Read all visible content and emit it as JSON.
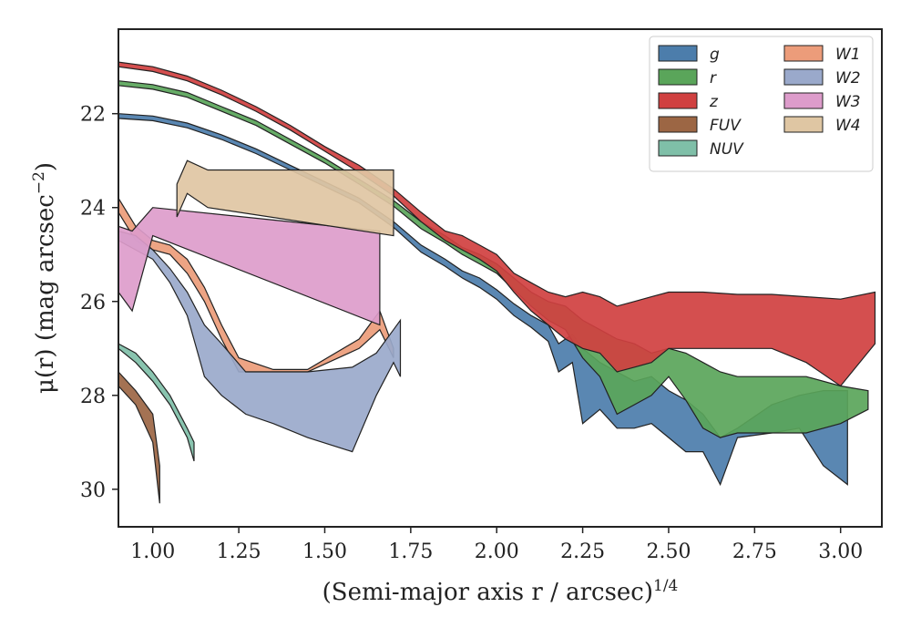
{
  "chart_data": {
    "type": "area",
    "xlabel": "(Semi-major axis r / arcsec)",
    "xlabel_exponent": "1/4",
    "ylabel": "μ(r) (mag arcsec",
    "ylabel_exponent": "−2",
    "ylabel_close": ")",
    "xlim": [
      0.9,
      3.12
    ],
    "ylim": [
      30.8,
      20.2
    ],
    "y_inverted": true,
    "grid": false,
    "legend_position": "top-right",
    "x_ticks": [
      {
        "value": 1.0,
        "label": "1.00"
      },
      {
        "value": 1.25,
        "label": "1.25"
      },
      {
        "value": 1.5,
        "label": "1.50"
      },
      {
        "value": 1.75,
        "label": "1.75"
      },
      {
        "value": 2.0,
        "label": "2.00"
      },
      {
        "value": 2.25,
        "label": "2.25"
      },
      {
        "value": 2.5,
        "label": "2.50"
      },
      {
        "value": 2.75,
        "label": "2.75"
      },
      {
        "value": 3.0,
        "label": "3.00"
      }
    ],
    "y_ticks": [
      {
        "value": 22,
        "label": "22"
      },
      {
        "value": 24,
        "label": "24"
      },
      {
        "value": 26,
        "label": "26"
      },
      {
        "value": 28,
        "label": "28"
      },
      {
        "value": 30,
        "label": "30"
      }
    ],
    "series": [
      {
        "name": "g",
        "color": "#4c7dab",
        "points": [
          [
            0.9,
            22.0,
            22.1
          ],
          [
            1.0,
            22.05,
            22.15
          ],
          [
            1.1,
            22.2,
            22.3
          ],
          [
            1.2,
            22.45,
            22.55
          ],
          [
            1.3,
            22.75,
            22.85
          ],
          [
            1.4,
            23.1,
            23.2
          ],
          [
            1.5,
            23.45,
            23.55
          ],
          [
            1.6,
            23.8,
            23.9
          ],
          [
            1.7,
            24.3,
            24.42
          ],
          [
            1.78,
            24.8,
            24.95
          ],
          [
            1.85,
            25.1,
            25.25
          ],
          [
            1.9,
            25.35,
            25.5
          ],
          [
            1.95,
            25.5,
            25.7
          ],
          [
            2.0,
            25.75,
            25.95
          ],
          [
            2.05,
            26.05,
            26.3
          ],
          [
            2.1,
            26.3,
            26.55
          ],
          [
            2.15,
            26.5,
            26.85
          ],
          [
            2.18,
            26.9,
            27.5
          ],
          [
            2.22,
            26.7,
            27.3
          ],
          [
            2.25,
            27.0,
            28.6
          ],
          [
            2.3,
            27.3,
            28.3
          ],
          [
            2.35,
            27.5,
            28.7
          ],
          [
            2.4,
            27.7,
            28.7
          ],
          [
            2.45,
            27.6,
            28.6
          ],
          [
            2.5,
            27.9,
            28.9
          ],
          [
            2.55,
            28.1,
            29.2
          ],
          [
            2.6,
            28.4,
            29.2
          ],
          [
            2.65,
            28.9,
            29.9
          ],
          [
            2.7,
            28.7,
            28.9
          ],
          [
            2.8,
            28.2,
            28.8
          ],
          [
            2.88,
            28.0,
            28.7
          ],
          [
            2.95,
            27.9,
            29.5
          ],
          [
            3.02,
            27.9,
            29.9
          ]
        ]
      },
      {
        "name": "r",
        "color": "#5aa55a",
        "points": [
          [
            0.9,
            21.3,
            21.4
          ],
          [
            1.0,
            21.38,
            21.48
          ],
          [
            1.1,
            21.55,
            21.65
          ],
          [
            1.2,
            21.85,
            21.95
          ],
          [
            1.3,
            22.15,
            22.25
          ],
          [
            1.4,
            22.55,
            22.65
          ],
          [
            1.5,
            22.95,
            23.05
          ],
          [
            1.6,
            23.4,
            23.5
          ],
          [
            1.7,
            23.85,
            23.97
          ],
          [
            1.78,
            24.3,
            24.45
          ],
          [
            1.85,
            24.6,
            24.75
          ],
          [
            1.9,
            24.85,
            25.0
          ],
          [
            1.95,
            25.0,
            25.2
          ],
          [
            2.0,
            25.2,
            25.4
          ],
          [
            2.05,
            25.5,
            25.75
          ],
          [
            2.1,
            25.8,
            26.1
          ],
          [
            2.15,
            26.0,
            26.4
          ],
          [
            2.2,
            26.1,
            26.6
          ],
          [
            2.25,
            26.4,
            27.2
          ],
          [
            2.3,
            26.6,
            27.6
          ],
          [
            2.35,
            26.8,
            28.4
          ],
          [
            2.4,
            26.9,
            28.2
          ],
          [
            2.45,
            27.1,
            28.0
          ],
          [
            2.5,
            27.0,
            27.6
          ],
          [
            2.55,
            27.1,
            28.1
          ],
          [
            2.6,
            27.3,
            28.7
          ],
          [
            2.65,
            27.5,
            28.9
          ],
          [
            2.7,
            27.6,
            28.8
          ],
          [
            2.8,
            27.6,
            28.8
          ],
          [
            2.9,
            27.6,
            28.8
          ],
          [
            3.0,
            27.8,
            28.6
          ],
          [
            3.08,
            27.9,
            28.3
          ]
        ]
      },
      {
        "name": "z",
        "color": "#d04040",
        "points": [
          [
            0.9,
            20.9,
            21.0
          ],
          [
            1.0,
            21.0,
            21.1
          ],
          [
            1.1,
            21.2,
            21.3
          ],
          [
            1.2,
            21.5,
            21.6
          ],
          [
            1.3,
            21.85,
            21.95
          ],
          [
            1.4,
            22.25,
            22.35
          ],
          [
            1.5,
            22.7,
            22.8
          ],
          [
            1.6,
            23.1,
            23.25
          ],
          [
            1.7,
            23.6,
            23.75
          ],
          [
            1.78,
            24.1,
            24.3
          ],
          [
            1.85,
            24.5,
            24.7
          ],
          [
            1.9,
            24.6,
            24.9
          ],
          [
            1.95,
            24.8,
            25.1
          ],
          [
            2.0,
            25.0,
            25.35
          ],
          [
            2.05,
            25.4,
            25.8
          ],
          [
            2.1,
            25.6,
            26.2
          ],
          [
            2.15,
            25.8,
            26.5
          ],
          [
            2.2,
            25.9,
            26.8
          ],
          [
            2.25,
            25.8,
            27.0
          ],
          [
            2.3,
            25.9,
            27.1
          ],
          [
            2.35,
            26.1,
            27.5
          ],
          [
            2.4,
            26.0,
            27.4
          ],
          [
            2.45,
            25.9,
            27.3
          ],
          [
            2.5,
            25.8,
            27.0
          ],
          [
            2.6,
            25.8,
            27.0
          ],
          [
            2.7,
            25.85,
            27.0
          ],
          [
            2.8,
            25.85,
            27.0
          ],
          [
            2.9,
            25.9,
            27.3
          ],
          [
            3.0,
            25.95,
            27.8
          ],
          [
            3.1,
            25.8,
            26.9
          ]
        ]
      },
      {
        "name": "FUV",
        "color": "#9c6644",
        "points": [
          [
            0.9,
            27.5,
            27.8
          ],
          [
            0.95,
            27.9,
            28.2
          ],
          [
            1.0,
            28.4,
            29.0
          ],
          [
            1.02,
            29.5,
            30.3
          ]
        ]
      },
      {
        "name": "NUV",
        "color": "#7fbfa8",
        "points": [
          [
            0.9,
            26.9,
            27.0
          ],
          [
            0.95,
            27.1,
            27.3
          ],
          [
            1.0,
            27.5,
            27.7
          ],
          [
            1.05,
            28.0,
            28.2
          ],
          [
            1.1,
            28.7,
            28.9
          ],
          [
            1.12,
            29.0,
            29.4
          ]
        ]
      },
      {
        "name": "W1",
        "color": "#ec9c7a",
        "points": [
          [
            0.9,
            23.8,
            24.1
          ],
          [
            0.95,
            24.4,
            24.7
          ],
          [
            1.0,
            24.7,
            24.9
          ],
          [
            1.05,
            24.8,
            25.0
          ],
          [
            1.1,
            25.1,
            25.4
          ],
          [
            1.15,
            25.7,
            26.0
          ],
          [
            1.2,
            26.5,
            26.8
          ],
          [
            1.25,
            27.2,
            27.5
          ],
          [
            1.35,
            27.45,
            27.5
          ],
          [
            1.45,
            27.45,
            27.5
          ],
          [
            1.6,
            26.8,
            27.0
          ],
          [
            1.66,
            26.2,
            26.6
          ],
          [
            1.7,
            27.0,
            27.2
          ]
        ]
      },
      {
        "name": "W2",
        "color": "#9aa9cb",
        "points": [
          [
            0.9,
            24.5,
            24.7
          ],
          [
            0.95,
            24.6,
            24.9
          ],
          [
            1.0,
            24.9,
            25.1
          ],
          [
            1.05,
            25.3,
            25.6
          ],
          [
            1.1,
            25.8,
            26.3
          ],
          [
            1.15,
            26.5,
            27.6
          ],
          [
            1.2,
            26.9,
            28.0
          ],
          [
            1.27,
            27.5,
            28.4
          ],
          [
            1.35,
            27.5,
            28.6
          ],
          [
            1.45,
            27.5,
            28.9
          ],
          [
            1.58,
            27.4,
            29.2
          ],
          [
            1.65,
            27.1,
            28.0
          ],
          [
            1.7,
            26.6,
            27.3
          ],
          [
            1.72,
            26.4,
            27.6
          ]
        ]
      },
      {
        "name": "W3",
        "color": "#dd9ccb",
        "points": [
          [
            0.9,
            24.4,
            25.8
          ],
          [
            0.94,
            24.5,
            26.2
          ],
          [
            1.0,
            24.0,
            24.6
          ],
          [
            1.66,
            24.5,
            26.5
          ]
        ]
      },
      {
        "name": "W4",
        "color": "#dfc6a3",
        "points": [
          [
            1.07,
            23.5,
            24.2
          ],
          [
            1.1,
            23.0,
            23.7
          ],
          [
            1.16,
            23.2,
            24.0
          ],
          [
            1.7,
            23.2,
            24.6
          ]
        ]
      }
    ]
  }
}
